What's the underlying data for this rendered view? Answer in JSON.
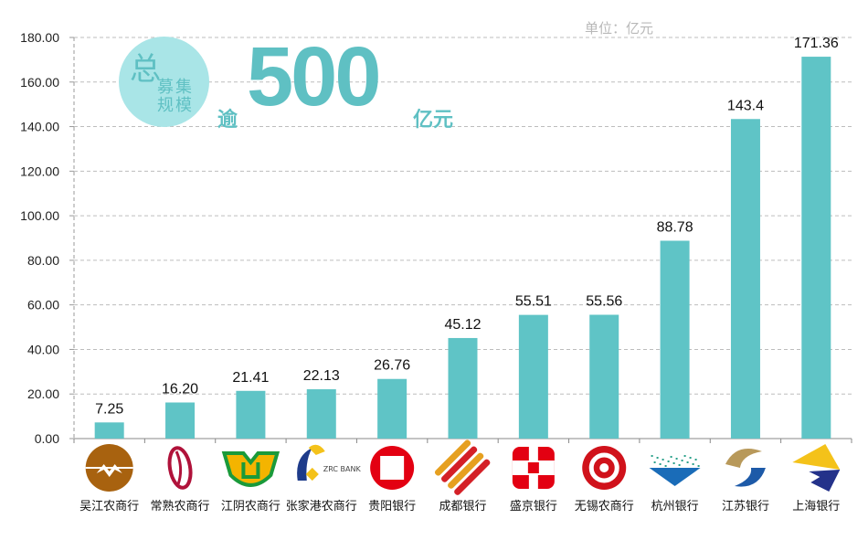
{
  "chart_data": {
    "type": "bar",
    "categories": [
      "吴江农商行",
      "常熟农商行",
      "江阴农商行",
      "张家港农商行",
      "贵阳银行",
      "成都银行",
      "盛京银行",
      "无锡农商行",
      "杭州银行",
      "江苏银行",
      "上海银行"
    ],
    "values": [
      7.25,
      16.2,
      21.41,
      22.13,
      26.76,
      45.12,
      55.51,
      55.56,
      88.78,
      143.4,
      171.36
    ],
    "data_labels": [
      "7.25",
      "16.20",
      "21.41",
      "22.13",
      "26.76",
      "45.12",
      "55.51",
      "55.56",
      "88.78",
      "143.4",
      "171.36"
    ],
    "yticks": [
      "0.00",
      "20.00",
      "40.00",
      "60.00",
      "80.00",
      "100.00",
      "120.00",
      "140.00",
      "160.00",
      "180.00"
    ],
    "ylim": [
      0,
      180
    ],
    "grid": true,
    "unit": "单位：亿元",
    "bar_color": "#5fc4c6",
    "logos": [
      "wujiang",
      "changshu",
      "jiangyin",
      "zrc-bank",
      "guiyang",
      "chengdu",
      "shengjing",
      "wuxi",
      "hangzhou",
      "jiangsu",
      "shanghai"
    ],
    "zrc_logo_text": "ZRC BANK"
  },
  "headline": {
    "zong": "总",
    "sub": "募集规模",
    "yu": "逾",
    "number": "500",
    "unit": "亿元"
  }
}
